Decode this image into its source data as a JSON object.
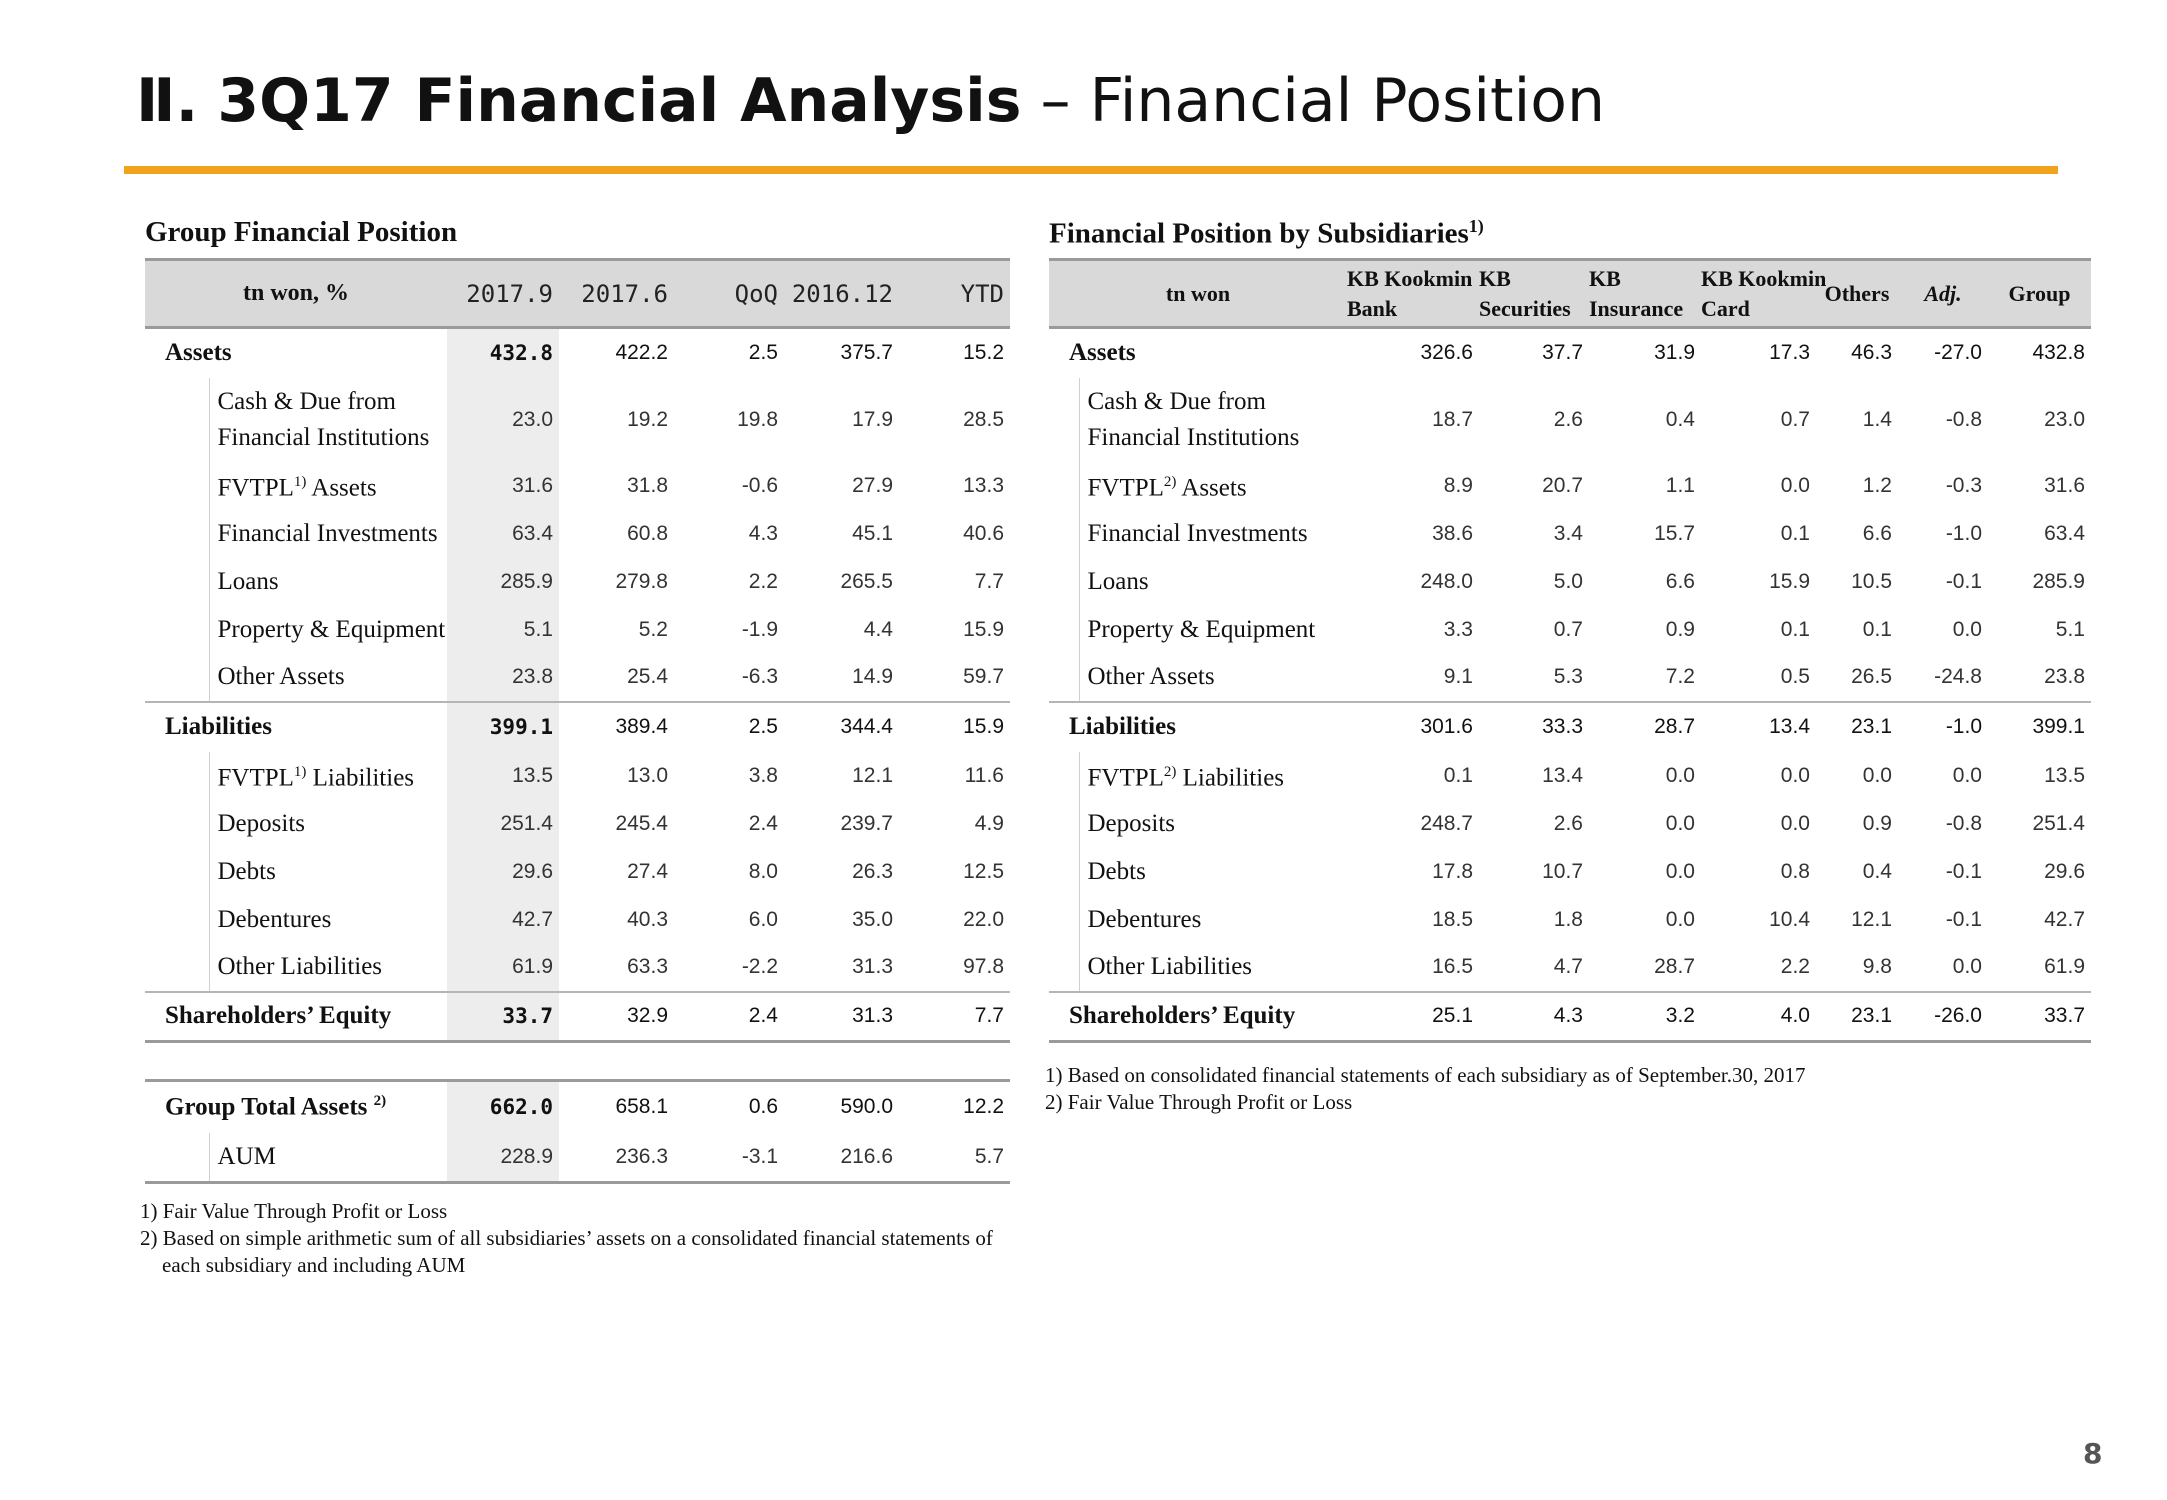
{
  "title": {
    "roman": "Ⅱ.",
    "main": "3Q17 Financial Analysis",
    "dash": "–",
    "sub": "Financial Position"
  },
  "page_number": "8",
  "left": {
    "heading": "Group Financial Position",
    "headers": [
      "tn won, %",
      "2017.9",
      "2017.6",
      "QoQ",
      "2016.12",
      "YTD"
    ],
    "rows": [
      {
        "label": "Assets",
        "cat": true,
        "values": [
          "432.8",
          "422.2",
          "2.5",
          "375.7",
          "15.2"
        ]
      },
      {
        "label": "Cash & Due from",
        "label2": "Financial Institutions",
        "values": [
          "23.0",
          "19.2",
          "19.8",
          "17.9",
          "28.5"
        ]
      },
      {
        "label": "FVTPL",
        "sup": "1)",
        "labelTail": " Assets",
        "values": [
          "31.6",
          "31.8",
          "-0.6",
          "27.9",
          "13.3"
        ]
      },
      {
        "label": "Financial Investments",
        "values": [
          "63.4",
          "60.8",
          "4.3",
          "45.1",
          "40.6"
        ]
      },
      {
        "label": "Loans",
        "values": [
          "285.9",
          "279.8",
          "2.2",
          "265.5",
          "7.7"
        ]
      },
      {
        "label": "Property & Equipment",
        "values": [
          "5.1",
          "5.2",
          "-1.9",
          "4.4",
          "15.9"
        ]
      },
      {
        "label": "Other Assets",
        "values": [
          "23.8",
          "25.4",
          "-6.3",
          "14.9",
          "59.7"
        ]
      },
      {
        "label": "Liabilities",
        "cat": true,
        "values": [
          "399.1",
          "389.4",
          "2.5",
          "344.4",
          "15.9"
        ]
      },
      {
        "label": "FVTPL",
        "sup": "1)",
        "labelTail": " Liabilities",
        "values": [
          "13.5",
          "13.0",
          "3.8",
          "12.1",
          "11.6"
        ]
      },
      {
        "label": "Deposits",
        "values": [
          "251.4",
          "245.4",
          "2.4",
          "239.7",
          "4.9"
        ]
      },
      {
        "label": "Debts",
        "values": [
          "29.6",
          "27.4",
          "8.0",
          "26.3",
          "12.5"
        ]
      },
      {
        "label": "Debentures",
        "values": [
          "42.7",
          "40.3",
          "6.0",
          "35.0",
          "22.0"
        ]
      },
      {
        "label": "Other Liabilities",
        "values": [
          "61.9",
          "63.3",
          "-2.2",
          "31.3",
          "97.8"
        ]
      },
      {
        "label": "Shareholders’ Equity",
        "cat": true,
        "values": [
          "33.7",
          "32.9",
          "2.4",
          "31.3",
          "7.7"
        ]
      }
    ],
    "total": {
      "label": "Group Total Assets",
      "sup": "2)",
      "values": [
        "662.0",
        "658.1",
        "0.6",
        "590.0",
        "12.2"
      ]
    },
    "aum": {
      "label": "AUM",
      "values": [
        "228.9",
        "236.3",
        "-3.1",
        "216.6",
        "5.7"
      ]
    },
    "notes": [
      "1) Fair Value Through Profit or Loss",
      "2) Based on simple arithmetic sum of all subsidiaries’ assets on a consolidated financial statements of",
      "each subsidiary and including AUM"
    ]
  },
  "right": {
    "heading": "Financial Position by Subsidiaries",
    "heading_sup": "1)",
    "headers": [
      {
        "l1": "tn won",
        "l2": ""
      },
      {
        "l1": "KB Kookmin",
        "l2": "Bank"
      },
      {
        "l1": "KB",
        "l2": "Securities"
      },
      {
        "l1": "KB",
        "l2": "Insurance"
      },
      {
        "l1": "KB Kookmin",
        "l2": "Card"
      },
      {
        "l1": "Others",
        "l2": ""
      },
      {
        "l1": "Adj.",
        "l2": ""
      },
      {
        "l1": "Group",
        "l2": ""
      }
    ],
    "rows": [
      {
        "label": "Assets",
        "cat": true,
        "values": [
          "326.6",
          "37.7",
          "31.9",
          "17.3",
          "46.3",
          "-27.0",
          "432.8"
        ]
      },
      {
        "label": "Cash & Due from",
        "label2": "Financial Institutions",
        "values": [
          "18.7",
          "2.6",
          "0.4",
          "0.7",
          "1.4",
          "-0.8",
          "23.0"
        ]
      },
      {
        "label": "FVTPL",
        "sup": "2)",
        "labelTail": " Assets",
        "values": [
          "8.9",
          "20.7",
          "1.1",
          "0.0",
          "1.2",
          "-0.3",
          "31.6"
        ]
      },
      {
        "label": "Financial Investments",
        "values": [
          "38.6",
          "3.4",
          "15.7",
          "0.1",
          "6.6",
          "-1.0",
          "63.4"
        ]
      },
      {
        "label": "Loans",
        "values": [
          "248.0",
          "5.0",
          "6.6",
          "15.9",
          "10.5",
          "-0.1",
          "285.9"
        ]
      },
      {
        "label": "Property & Equipment",
        "values": [
          "3.3",
          "0.7",
          "0.9",
          "0.1",
          "0.1",
          "0.0",
          "5.1"
        ]
      },
      {
        "label": "Other Assets",
        "values": [
          "9.1",
          "5.3",
          "7.2",
          "0.5",
          "26.5",
          "-24.8",
          "23.8"
        ]
      },
      {
        "label": "Liabilities",
        "cat": true,
        "values": [
          "301.6",
          "33.3",
          "28.7",
          "13.4",
          "23.1",
          "-1.0",
          "399.1"
        ]
      },
      {
        "label": "FVTPL",
        "sup": "2)",
        "labelTail": " Liabilities",
        "values": [
          "0.1",
          "13.4",
          "0.0",
          "0.0",
          "0.0",
          "0.0",
          "13.5"
        ]
      },
      {
        "label": "Deposits",
        "values": [
          "248.7",
          "2.6",
          "0.0",
          "0.0",
          "0.9",
          "-0.8",
          "251.4"
        ]
      },
      {
        "label": "Debts",
        "values": [
          "17.8",
          "10.7",
          "0.0",
          "0.8",
          "0.4",
          "-0.1",
          "29.6"
        ]
      },
      {
        "label": "Debentures",
        "values": [
          "18.5",
          "1.8",
          "0.0",
          "10.4",
          "12.1",
          "-0.1",
          "42.7"
        ]
      },
      {
        "label": "Other Liabilities",
        "values": [
          "16.5",
          "4.7",
          "28.7",
          "2.2",
          "9.8",
          "0.0",
          "61.9"
        ]
      },
      {
        "label": "Shareholders’ Equity",
        "cat": true,
        "values": [
          "25.1",
          "4.3",
          "3.2",
          "4.0",
          "23.1",
          "-26.0",
          "33.7"
        ]
      }
    ],
    "notes": [
      "1) Based on consolidated financial statements of each subsidiary as of September.30, 2017",
      "2) Fair Value Through Profit or Loss"
    ]
  }
}
